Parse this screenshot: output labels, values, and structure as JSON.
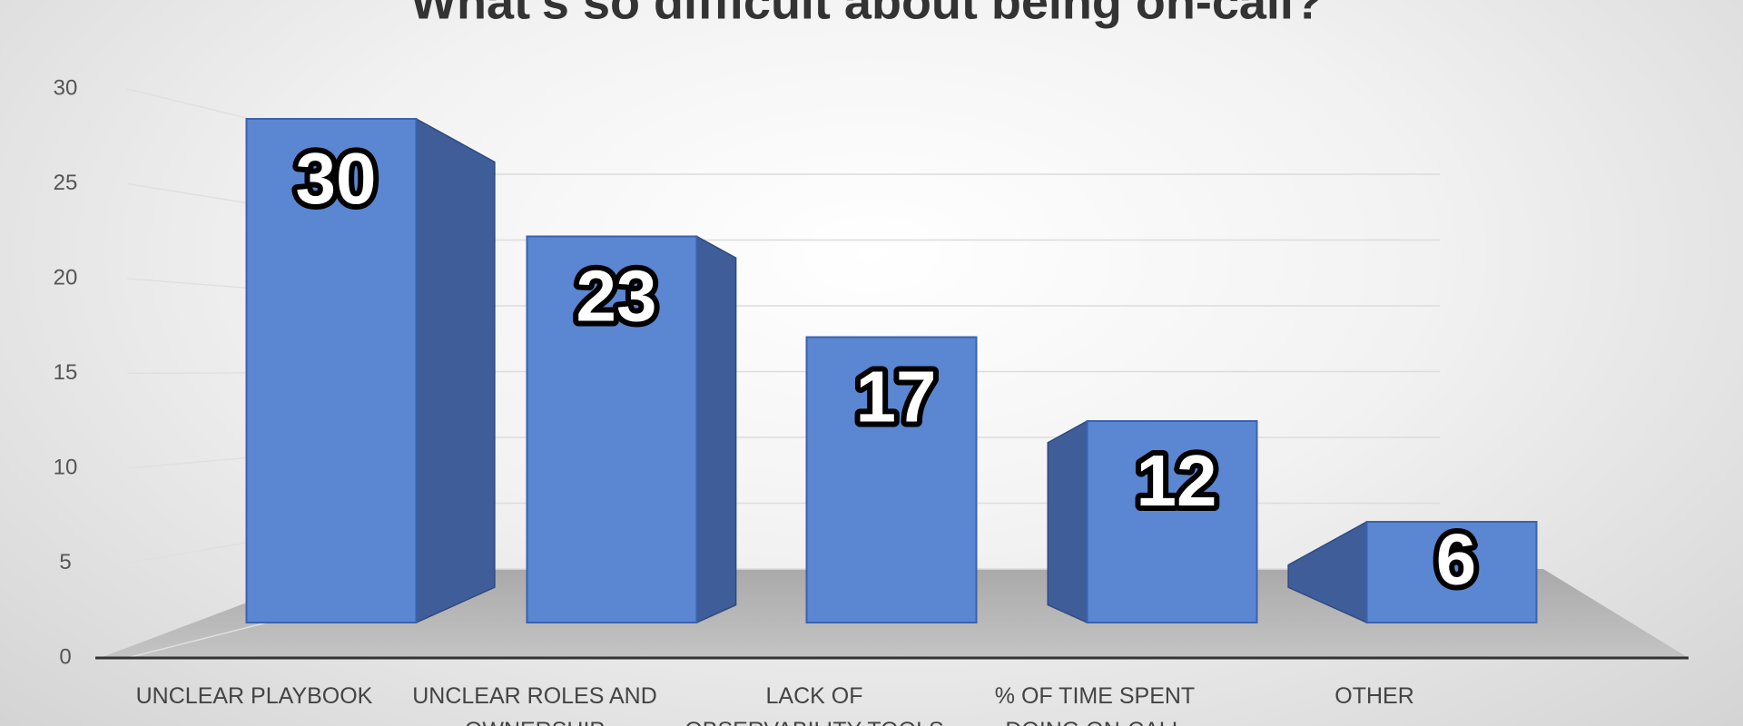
{
  "chart_data": {
    "type": "bar3d",
    "title": "What's so difficult about being on-call?",
    "categories": [
      "UNCLEAR PLAYBOOK",
      "UNCLEAR ROLES AND OWNERSHIP",
      "LACK OF OBSERVABILITY TOOLS",
      "% OF TIME SPENT DOING ON-CALL",
      "OTHER"
    ],
    "values": [
      30,
      23,
      17,
      12,
      6
    ],
    "color": "#5b86d1",
    "ylim": [
      0,
      30
    ],
    "yticks": [
      0,
      5,
      10,
      15,
      20,
      25,
      30
    ],
    "grid": true
  }
}
